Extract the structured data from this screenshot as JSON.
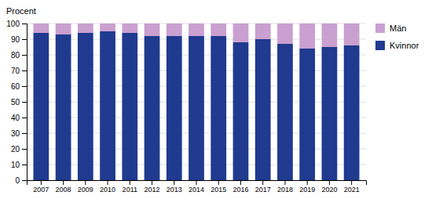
{
  "chart_data": {
    "type": "bar",
    "stacked": true,
    "ylabel": "Procent",
    "categories": [
      "2007",
      "2008",
      "2009",
      "2010",
      "2011",
      "2012",
      "2013",
      "2014",
      "2015",
      "2016",
      "2017",
      "2018",
      "2019",
      "2020",
      "2021"
    ],
    "series": [
      {
        "name": "Kvinnor",
        "color": "#1F3A8F",
        "values": [
          94,
          93,
          94,
          95,
          94,
          92,
          92,
          92,
          92,
          88,
          90,
          87,
          84,
          85,
          86
        ]
      },
      {
        "name": "Män",
        "color": "#C9A0D0",
        "values": [
          6,
          7,
          6,
          5,
          6,
          8,
          8,
          8,
          8,
          12,
          10,
          13,
          16,
          15,
          14
        ]
      }
    ],
    "ylim": [
      0,
      100
    ],
    "yticks": [
      0,
      10,
      20,
      30,
      40,
      50,
      60,
      70,
      80,
      90,
      100
    ],
    "grid": true,
    "legend": "upper right"
  }
}
